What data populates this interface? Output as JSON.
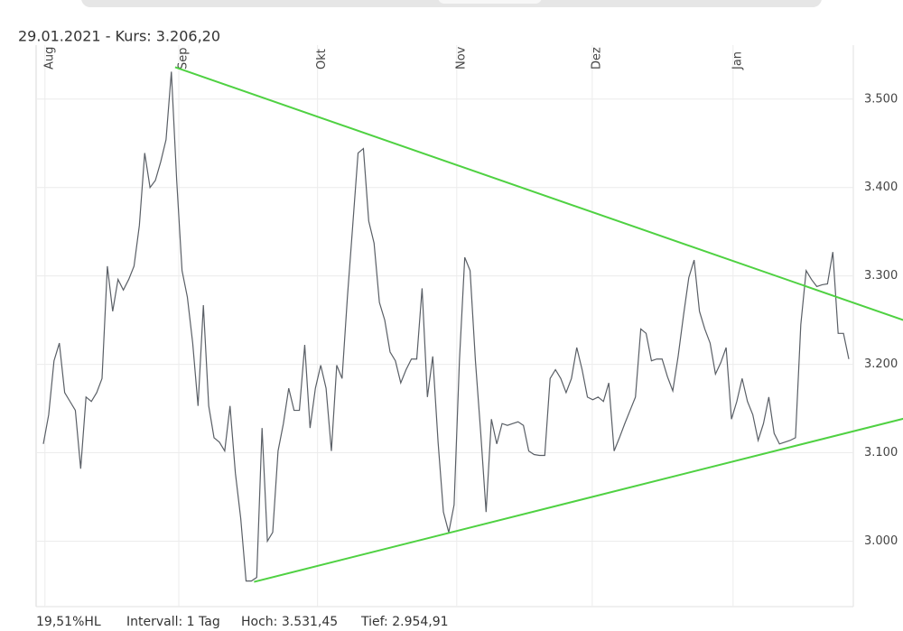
{
  "chart_data": {
    "type": "line",
    "title": "29.01.2021  - Kurs: 3.206,20",
    "footer": [
      "19,51%HL",
      "Intervall: 1 Tag",
      "Hoch: 3.531,45",
      "Tief: 2.954,91"
    ],
    "xlim": [
      0,
      151
    ],
    "xticks": [
      {
        "value": 0.3,
        "label": "Aug"
      },
      {
        "value": 25.4,
        "label": "Sep"
      },
      {
        "value": 51.4,
        "label": "Okt"
      },
      {
        "value": 77.5,
        "label": "Nov"
      },
      {
        "value": 102.9,
        "label": "Dez"
      },
      {
        "value": 129.3,
        "label": "Jan"
      }
    ],
    "ylim": [
      2926,
      3561
    ],
    "yticks": [
      {
        "value": 3000,
        "label": "3.000"
      },
      {
        "value": 3100,
        "label": "3.100"
      },
      {
        "value": 3200,
        "label": "3.200"
      },
      {
        "value": 3300,
        "label": "3.300"
      },
      {
        "value": 3400,
        "label": "3.400"
      },
      {
        "value": 3500,
        "label": "3.500"
      }
    ],
    "grid": true,
    "series": [
      {
        "color": "#5a5f66",
        "values": [
          3110,
          3143,
          3204,
          3224,
          3168,
          3158,
          3148,
          3082,
          3163,
          3158,
          3168,
          3184,
          3311,
          3260,
          3296,
          3284,
          3296,
          3311,
          3357,
          3439,
          3400,
          3408,
          3429,
          3454,
          3531,
          3408,
          3306,
          3276,
          3224,
          3153,
          3267,
          3153,
          3117,
          3112,
          3102,
          3153,
          3077,
          3026,
          2955,
          2955,
          2959,
          3128,
          3000,
          3010,
          3102,
          3133,
          3173,
          3148,
          3148,
          3222,
          3128,
          3173,
          3199,
          3173,
          3102,
          3199,
          3184,
          3276,
          3357,
          3439,
          3444,
          3362,
          3337,
          3270,
          3250,
          3214,
          3204,
          3179,
          3194,
          3206,
          3206,
          3286,
          3163,
          3209,
          3112,
          3033,
          3010,
          3041,
          3204,
          3321,
          3306,
          3204,
          3122,
          3033,
          3138,
          3110,
          3133,
          3131,
          3133,
          3135,
          3131,
          3102,
          3098,
          3097,
          3097,
          3184,
          3194,
          3184,
          3168,
          3184,
          3219,
          3194,
          3163,
          3160,
          3163,
          3158,
          3179,
          3102,
          3117,
          3133,
          3148,
          3163,
          3240,
          3235,
          3204,
          3206,
          3206,
          3186,
          3170,
          3209,
          3255,
          3298,
          3318,
          3260,
          3240,
          3224,
          3189,
          3202,
          3219,
          3138,
          3158,
          3184,
          3158,
          3143,
          3114,
          3133,
          3163,
          3122,
          3110,
          3112,
          3114,
          3117,
          3245,
          3306,
          3296,
          3288,
          3290,
          3291,
          3327,
          3235,
          3235,
          3206
        ]
      }
    ],
    "trendlines": [
      {
        "color": "#4fd142",
        "x": [
          24.7,
          162.2
        ],
        "values": [
          3536,
          3248
        ]
      },
      {
        "color": "#4fd142",
        "x": [
          39.5,
          162.2
        ],
        "values": [
          2954,
          3140
        ]
      }
    ]
  }
}
